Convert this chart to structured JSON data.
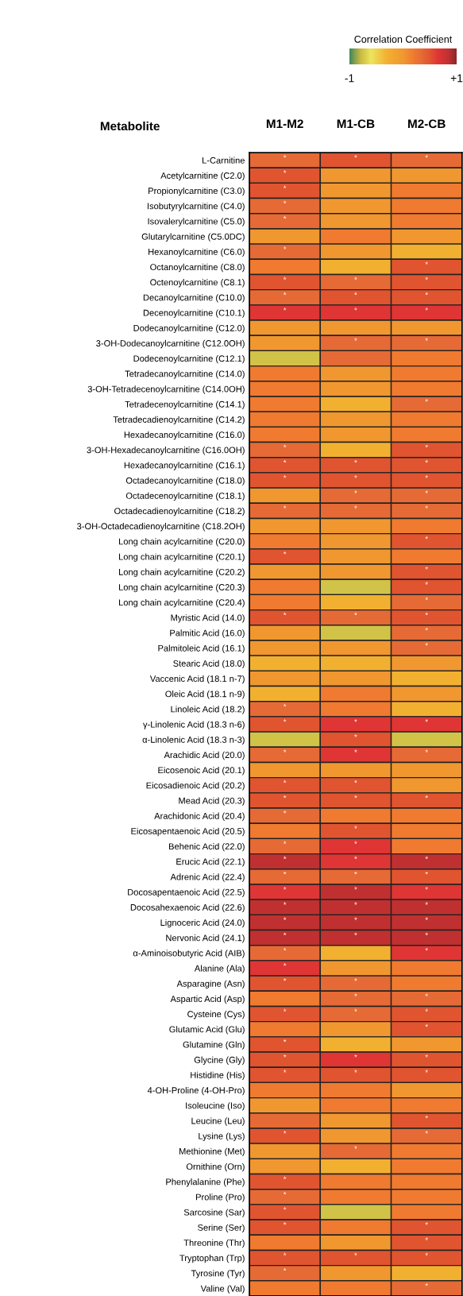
{
  "chart_data": {
    "type": "heatmap",
    "ylabel": "Metabolite",
    "clabel": "Correlation Coefficient",
    "clim": [
      -1,
      1
    ],
    "cticks": [
      {
        "value": -1,
        "label": "-1"
      },
      {
        "value": 1,
        "label": "+1"
      }
    ],
    "categories": [
      "M1-M2",
      "M1-CB",
      "M2-CB"
    ],
    "y_categories": [
      "L-Carnitine",
      "Acetylcarnitine (C2.0)",
      "Propionylcarnitine (C3.0)",
      "Isobutyrylcarnitine (C4.0)",
      "Isovalerylcarnitine (C5.0)",
      "Glutarylcarnitine (C5.0DC)",
      "Hexanoylcarnitine (C6.0)",
      "Octanoylcarnitine (C8.0)",
      "Octenoylcarnitine (C8.1)",
      "Decanoylcarnitine (C10.0)",
      "Decenoylcarnitine (C10.1)",
      "Dodecanoylcarnitine (C12.0)",
      "3-OH-Dodecanoylcarnitine (C12.0OH)",
      "Dodecenoylcarnitine (C12.1)",
      "Tetradecanoylcarnitine (C14.0)",
      "3-OH-Tetradecenoylcarnitine (C14.0OH)",
      "Tetradecenoylcarnitine (C14.1)",
      "Tetradecadienoylcarnitine (C14.2)",
      "Hexadecanoylcarnitine (C16.0)",
      "3-OH-Hexadecanoylcarnitine (C16.0OH)",
      "Hexadecanoylcarnitine (C16.1)",
      "Octadecanoylcarnitine (C18.0)",
      "Octadecenoylcarnitine (C18.1)",
      "Octadecadienoylcarnitine (C18.2)",
      "3-OH-Octadecadienoylcarnitine (C18.2OH)",
      "Long chain acylcarnitine (C20.0)",
      "Long chain acylcarnitine (C20.1)",
      "Long chain acylcarnitine (C20.2)",
      "Long chain acylcarnitine (C20.3)",
      "Long chain acylcarnitine (C20.4)",
      "Myristic Acid (14.0)",
      "Palmitic Acid (16.0)",
      "Palmitoleic Acid (16.1)",
      "Stearic Acid (18.0)",
      "Vaccenic Acid (18.1 n-7)",
      "Oleic Acid (18.1 n-9)",
      "Linoleic Acid (18.2)",
      "γ-Linolenic Acid (18.3 n-6)",
      "α-Linolenic Acid (18.3 n-3)",
      "Arachidic Acid (20.0)",
      "Eicosenoic Acid (20.1)",
      "Eicosadienoic Acid (20.2)",
      "Mead Acid (20.3)",
      "Arachidonic Acid (20.4)",
      "Eicosapentaenoic Acid (20.5)",
      "Behenic Acid (22.0)",
      "Erucic Acid (22.1)",
      "Adrenic Acid (22.4)",
      "Docosapentaenoic Acid (22.5)",
      "Docosahexaenoic Acid (22.6)",
      "Lignoceric Acid (24.0)",
      "Nervonic Acid (24.1)",
      "α-Aminoisobutyric Acid (AIB)",
      "Alanine (Ala)",
      "Asparagine (Asn)",
      "Aspartic Acid (Asp)",
      "Cysteine (Cys)",
      "Glutamic Acid (Glu)",
      "Glutamine (Gln)",
      "Glycine (Gly)",
      "Histidine (His)",
      "4-OH-Proline (4-OH-Pro)",
      "Isoleucine (Iso)",
      "Leucine (Leu)",
      "Lysine (Lys)",
      "Methionine (Met)",
      "Ornithine (Orn)",
      "Phenylalanine (Phe)",
      "Proline (Pro)",
      "Sarcosine (Sar)",
      "Serine (Ser)",
      "Threonine (Thr)",
      "Tryptophan (Trp)",
      "Tyrosine (Tyr)",
      "Valine (Val)"
    ],
    "cells": [
      [
        0.35,
        0.5,
        0.35
      ],
      [
        0.5,
        0,
        0
      ],
      [
        0.5,
        0,
        0.2
      ],
      [
        0.35,
        0,
        0.2
      ],
      [
        0.35,
        0,
        0.2
      ],
      [
        0,
        0.2,
        0
      ],
      [
        0.35,
        0,
        -0.3
      ],
      [
        0.2,
        -0.3,
        0.5
      ],
      [
        0.5,
        0.35,
        0.5
      ],
      [
        0.35,
        0.5,
        0.5
      ],
      [
        0.65,
        0.65,
        0.65
      ],
      [
        0,
        0,
        0
      ],
      [
        0,
        0.35,
        0.35
      ],
      [
        -0.75,
        0.35,
        0.2
      ],
      [
        0.2,
        0,
        0.2
      ],
      [
        0.2,
        0,
        0.2
      ],
      [
        0.2,
        -0.3,
        0.35
      ],
      [
        0.2,
        0,
        0.2
      ],
      [
        0.2,
        0,
        0.2
      ],
      [
        0.35,
        -0.3,
        0.5
      ],
      [
        0.5,
        0.5,
        0.5
      ],
      [
        0.5,
        0.5,
        0.5
      ],
      [
        0,
        0.35,
        0.35
      ],
      [
        0.35,
        0.35,
        0.35
      ],
      [
        0,
        0,
        0.2
      ],
      [
        0.2,
        0,
        0.5
      ],
      [
        0.5,
        0,
        0.2
      ],
      [
        0,
        0,
        0.5
      ],
      [
        0.2,
        -0.75,
        0.5
      ],
      [
        0.2,
        -0.3,
        0.35
      ],
      [
        0.5,
        0.35,
        0.5
      ],
      [
        0,
        -0.75,
        0.35
      ],
      [
        0,
        0,
        0.35
      ],
      [
        -0.3,
        -0.3,
        0
      ],
      [
        0,
        0,
        -0.3
      ],
      [
        -0.3,
        0.2,
        0
      ],
      [
        0.35,
        0.2,
        -0.3
      ],
      [
        0.5,
        0.65,
        0.65
      ],
      [
        -0.75,
        0.5,
        -0.75
      ],
      [
        0.35,
        0.65,
        0.35
      ],
      [
        0,
        0,
        0
      ],
      [
        0.5,
        0.5,
        0
      ],
      [
        0.5,
        0.5,
        0.5
      ],
      [
        0.35,
        0.2,
        0.2
      ],
      [
        0.2,
        0.5,
        0.2
      ],
      [
        0.35,
        0.65,
        0.2
      ],
      [
        0.85,
        0.65,
        0.85
      ],
      [
        0.35,
        0.35,
        0.5
      ],
      [
        0.65,
        0.85,
        0.65
      ],
      [
        0.85,
        0.85,
        0.85
      ],
      [
        0.85,
        0.85,
        0.85
      ],
      [
        0.85,
        0.85,
        0.85
      ],
      [
        0.35,
        -0.3,
        0.65
      ],
      [
        0.65,
        0,
        0.2
      ],
      [
        0.5,
        0.35,
        0.2
      ],
      [
        0.2,
        0.35,
        0.35
      ],
      [
        0.5,
        0.35,
        0.5
      ],
      [
        0.2,
        0,
        0.5
      ],
      [
        0.5,
        -0.3,
        0
      ],
      [
        0.5,
        0.65,
        0.5
      ],
      [
        0.5,
        0.5,
        0.5
      ],
      [
        0.2,
        0.2,
        0
      ],
      [
        0,
        0.2,
        0.2
      ],
      [
        0.35,
        0,
        0.5
      ],
      [
        0.5,
        0,
        0.35
      ],
      [
        0,
        0.35,
        0.2
      ],
      [
        0,
        -0.3,
        0.2
      ],
      [
        0.5,
        0.2,
        0.2
      ],
      [
        0.35,
        0.2,
        0.2
      ],
      [
        0.5,
        -0.75,
        0.2
      ],
      [
        0.5,
        0.2,
        0.5
      ],
      [
        0.2,
        0,
        0.5
      ],
      [
        0.5,
        0.5,
        0.5
      ],
      [
        0.35,
        0,
        -0.3
      ],
      [
        0.2,
        0.2,
        0.35
      ]
    ],
    "cell_labels": [
      [
        "*",
        "*",
        "*"
      ],
      [
        "*",
        null,
        null
      ],
      [
        "*",
        null,
        null
      ],
      [
        "*",
        null,
        null
      ],
      [
        "*",
        null,
        null
      ],
      [
        null,
        null,
        null
      ],
      [
        "*",
        null,
        null
      ],
      [
        null,
        null,
        "*"
      ],
      [
        "*",
        "*",
        "*"
      ],
      [
        "*",
        "*",
        "*"
      ],
      [
        "*",
        "*",
        "*"
      ],
      [
        null,
        null,
        null
      ],
      [
        null,
        "*",
        "*"
      ],
      [
        null,
        null,
        null
      ],
      [
        null,
        null,
        null
      ],
      [
        null,
        null,
        null
      ],
      [
        null,
        null,
        "*"
      ],
      [
        null,
        null,
        null
      ],
      [
        null,
        null,
        null
      ],
      [
        "*",
        null,
        "*"
      ],
      [
        "*",
        "*",
        "*"
      ],
      [
        "*",
        "*",
        "*"
      ],
      [
        null,
        "*",
        "*"
      ],
      [
        "*",
        "*",
        "*"
      ],
      [
        null,
        null,
        null
      ],
      [
        null,
        null,
        "*"
      ],
      [
        "*",
        null,
        null
      ],
      [
        null,
        null,
        "*"
      ],
      [
        null,
        null,
        "*"
      ],
      [
        null,
        null,
        "*"
      ],
      [
        "*",
        "*",
        "*"
      ],
      [
        null,
        null,
        "*"
      ],
      [
        null,
        null,
        "*"
      ],
      [
        null,
        null,
        null
      ],
      [
        null,
        null,
        null
      ],
      [
        null,
        null,
        null
      ],
      [
        "*",
        null,
        null
      ],
      [
        "*",
        "*",
        "*"
      ],
      [
        null,
        "*",
        null
      ],
      [
        "*",
        "*",
        "*"
      ],
      [
        null,
        null,
        null
      ],
      [
        "*",
        "*",
        null
      ],
      [
        "*",
        "*",
        "*"
      ],
      [
        "*",
        null,
        null
      ],
      [
        null,
        "*",
        null
      ],
      [
        "*",
        "*",
        null
      ],
      [
        "*",
        "*",
        "*"
      ],
      [
        "*",
        "*",
        "*"
      ],
      [
        "*",
        "*",
        "*"
      ],
      [
        "*",
        "*",
        "*"
      ],
      [
        "*",
        "*",
        "*"
      ],
      [
        "*",
        "*",
        "*"
      ],
      [
        "*",
        null,
        "*"
      ],
      [
        "*",
        null,
        null
      ],
      [
        "*",
        "*",
        null
      ],
      [
        null,
        "*",
        "*"
      ],
      [
        "*",
        "*",
        "*"
      ],
      [
        null,
        null,
        "*"
      ],
      [
        "*",
        null,
        null
      ],
      [
        "*",
        "*",
        "*"
      ],
      [
        "*",
        "*",
        "*"
      ],
      [
        null,
        null,
        null
      ],
      [
        null,
        null,
        null
      ],
      [
        null,
        null,
        "*"
      ],
      [
        "*",
        null,
        "*"
      ],
      [
        null,
        "*",
        null
      ],
      [
        null,
        null,
        null
      ],
      [
        "*",
        null,
        null
      ],
      [
        "*",
        null,
        null
      ],
      [
        "*",
        null,
        null
      ],
      [
        "*",
        null,
        "*"
      ],
      [
        null,
        null,
        "*"
      ],
      [
        "*",
        "*",
        "*"
      ],
      [
        "*",
        null,
        null
      ],
      [
        null,
        null,
        "*"
      ]
    ]
  }
}
